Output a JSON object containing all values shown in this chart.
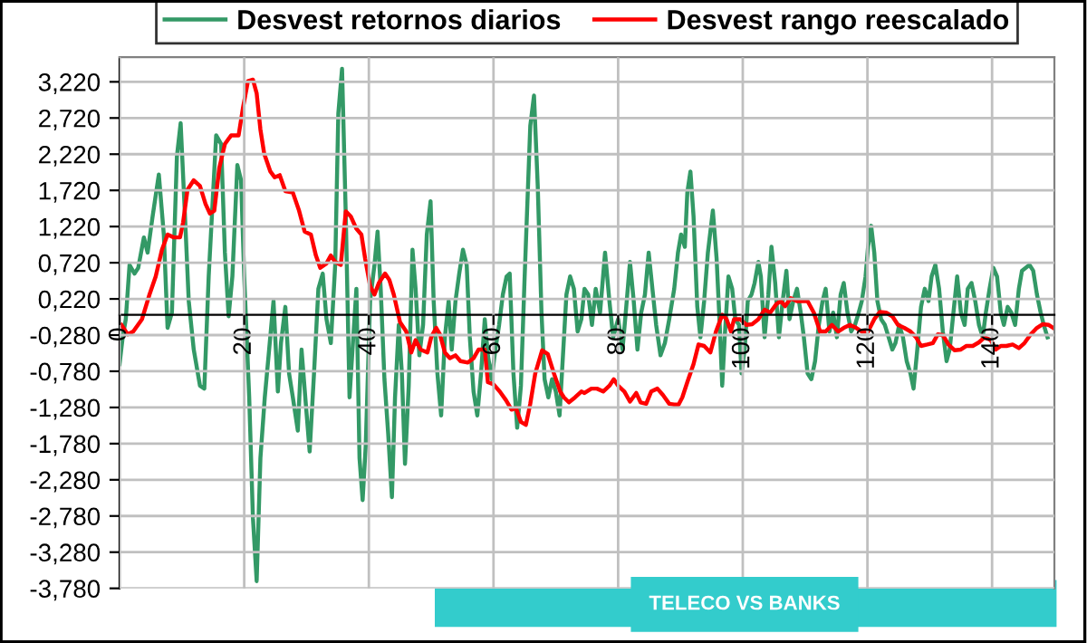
{
  "chart_data": {
    "type": "line",
    "xlim": [
      0,
      150
    ],
    "xticks": [
      0,
      20,
      40,
      60,
      80,
      100,
      120,
      140
    ],
    "ylim": [
      -3.78,
      3.56
    ],
    "yticks": [
      {
        "value": 3.22,
        "label": "3,220"
      },
      {
        "value": 2.72,
        "label": "2,720"
      },
      {
        "value": 2.22,
        "label": "2,220"
      },
      {
        "value": 1.72,
        "label": "1,720"
      },
      {
        "value": 1.22,
        "label": "1,220"
      },
      {
        "value": 0.72,
        "label": "0,720"
      },
      {
        "value": 0.22,
        "label": "0,220"
      },
      {
        "value": -0.28,
        "label": "-0,280"
      },
      {
        "value": -0.78,
        "label": "-0,780"
      },
      {
        "value": -1.28,
        "label": "-1,280"
      },
      {
        "value": -1.78,
        "label": "-1,780"
      },
      {
        "value": -2.28,
        "label": "-2,280"
      },
      {
        "value": -2.78,
        "label": "-2,780"
      },
      {
        "value": -3.28,
        "label": "-3,280"
      },
      {
        "value": -3.78,
        "label": "-3,780"
      }
    ],
    "grid": true,
    "legend": "top",
    "marker": "none",
    "line_style": "solid",
    "annotations": [
      "TELECO VS BANKS"
    ],
    "series": [
      {
        "name": "Desvest retornos diarios",
        "color": "#339966",
        "x": [
          0,
          0.5,
          1.0,
          1.6,
          2.4,
          3.0,
          3.9,
          4.5,
          5.3,
          6.3,
          7.1,
          7.7,
          8.4,
          9.2,
          9.8,
          10.5,
          11.1,
          11.9,
          12.9,
          13.6,
          14.3,
          15.5,
          16.3,
          16.9,
          17.5,
          18.1,
          18.9,
          19.5,
          20.0,
          20.8,
          21.4,
          22.0,
          22.6,
          23.3,
          24.0,
          24.7,
          25.4,
          25.9,
          26.6,
          27.2,
          27.8,
          28.6,
          29.2,
          29.8,
          30.5,
          31.2,
          31.9,
          32.6,
          33.2,
          33.9,
          34.6,
          35.1,
          35.7,
          36.3,
          36.9,
          37.5,
          38.0,
          38.5,
          39.0,
          39.5,
          40.2,
          40.9,
          41.4,
          41.9,
          42.5,
          43.1,
          43.7,
          44.2,
          44.8,
          45.3,
          45.8,
          46.4,
          47.0,
          47.5,
          48.1,
          48.7,
          49.3,
          49.9,
          50.4,
          51.0,
          51.6,
          52.2,
          52.8,
          53.3,
          53.9,
          54.5,
          55.1,
          55.7,
          56.2,
          56.8,
          57.4,
          58.0,
          58.6,
          59.1,
          59.7,
          60.3,
          60.9,
          61.5,
          62.1,
          62.6,
          63.2,
          63.8,
          64.4,
          65.0,
          65.5,
          65.9,
          66.5,
          67.1,
          67.7,
          68.2,
          68.8,
          69.4,
          70.0,
          70.6,
          71.2,
          71.7,
          72.3,
          72.9,
          73.5,
          74.1,
          74.6,
          75.2,
          75.8,
          76.4,
          77.1,
          77.9,
          78.6,
          79.2,
          80.0,
          80.7,
          81.3,
          81.9,
          82.5,
          83.1,
          83.7,
          84.3,
          84.9,
          85.5,
          86.1,
          86.8,
          87.5,
          88.2,
          89.0,
          89.6,
          90.1,
          90.7,
          91.1,
          91.6,
          92.1,
          92.7,
          93.2,
          93.8,
          94.4,
          95.2,
          95.8,
          96.3,
          96.7,
          97.1,
          97.7,
          98.3,
          98.8,
          99.4,
          99.8,
          100.3,
          100.8,
          101.4,
          101.9,
          102.5,
          102.9,
          103.5,
          104.1,
          104.6,
          105.2,
          105.8,
          106.4,
          107.0,
          107.5,
          108.1,
          108.7,
          109.3,
          109.8,
          110.4,
          111.0,
          111.6,
          112.2,
          112.8,
          113.3,
          113.9,
          114.5,
          115.1,
          115.7,
          116.2,
          116.8,
          117.4,
          118.0,
          118.6,
          119.1,
          119.7,
          120.1,
          120.6,
          121.1,
          121.6,
          122.2,
          122.8,
          123.4,
          124.0,
          124.5,
          125.1,
          125.7,
          126.3,
          126.9,
          127.4,
          128.0,
          128.6,
          129.2,
          129.8,
          130.3,
          130.9,
          131.5,
          132.1,
          132.7,
          133.2,
          133.8,
          134.4,
          135.0,
          135.6,
          136.1,
          136.7,
          137.3,
          137.9,
          138.5,
          139.0,
          139.6,
          140.2,
          140.8,
          141.4,
          141.9,
          142.5,
          143.1,
          143.7,
          144.3,
          144.8,
          145.4,
          146.0,
          146.6,
          147.2,
          147.8,
          148.3,
          148.9
        ],
        "values": [
          -0.68,
          -0.31,
          -0.06,
          0.69,
          0.57,
          0.65,
          1.07,
          0.86,
          1.36,
          1.94,
          1.11,
          -0.18,
          0.03,
          2.19,
          2.65,
          1.36,
          0.19,
          -0.48,
          -0.98,
          -1.02,
          0.53,
          2.48,
          2.36,
          0.86,
          -0.02,
          0.53,
          2.07,
          1.86,
          0.53,
          -1.14,
          -2.81,
          -3.68,
          -1.98,
          -1.14,
          -0.48,
          0.19,
          -1.06,
          -0.39,
          0.11,
          -0.81,
          -1.14,
          -1.6,
          -0.48,
          -1.14,
          -1.89,
          -0.81,
          0.36,
          0.57,
          -0.06,
          -0.39,
          0.69,
          2.78,
          3.4,
          1.36,
          -1.14,
          -0.31,
          0.36,
          -1.98,
          -2.56,
          -1.81,
          0.19,
          0.69,
          1.15,
          0.36,
          -0.89,
          -1.64,
          -2.52,
          -1.14,
          -0.14,
          -0.81,
          -2.06,
          -0.98,
          0.9,
          0.36,
          -0.56,
          -0.14,
          1.11,
          1.57,
          0.19,
          -0.81,
          -1.39,
          -0.31,
          0.19,
          -0.48,
          0.19,
          0.57,
          0.9,
          0.69,
          -0.31,
          -1.06,
          -1.39,
          -0.81,
          -0.06,
          -0.56,
          -0.89,
          -0.48,
          -0.14,
          0.28,
          0.53,
          0.57,
          -0.81,
          -1.56,
          -0.98,
          0.53,
          1.69,
          2.61,
          3.03,
          1.78,
          0.03,
          -0.89,
          -1.14,
          -0.89,
          -1.06,
          -1.39,
          -0.48,
          0.28,
          0.53,
          0.36,
          -0.23,
          -0.06,
          0.36,
          0.28,
          -0.14,
          0.36,
          0.03,
          0.86,
          0.19,
          -0.31,
          -0.06,
          -0.48,
          0.11,
          0.73,
          0.19,
          -0.48,
          0.03,
          0.28,
          0.86,
          0.36,
          -0.14,
          -0.56,
          -0.39,
          -0.06,
          0.36,
          0.86,
          1.11,
          0.94,
          1.69,
          1.98,
          1.36,
          0.11,
          -0.31,
          0.19,
          0.86,
          1.44,
          0.78,
          -0.14,
          -0.98,
          -0.31,
          0.53,
          0.36,
          -0.06,
          -0.14,
          -0.81,
          -0.48,
          0.19,
          0.28,
          0.44,
          0.73,
          0.53,
          -0.31,
          0.28,
          0.94,
          0.44,
          -0.31,
          0.19,
          0.61,
          -0.06,
          0.19,
          0.36,
          0.03,
          -0.31,
          -0.81,
          -0.89,
          -0.64,
          -0.14,
          0.19,
          0.36,
          -0.23,
          0.03,
          -0.31,
          0.28,
          0.44,
          0.03,
          -0.23,
          -0.14,
          0.03,
          0.19,
          0.53,
          0.94,
          1.23,
          0.86,
          0.19,
          -0.06,
          -0.14,
          -0.31,
          -0.48,
          -0.39,
          -0.14,
          -0.31,
          -0.64,
          -0.81,
          -1.02,
          -0.48,
          0.11,
          0.36,
          0.19,
          0.53,
          0.69,
          0.36,
          -0.23,
          -0.64,
          -0.48,
          0.03,
          0.53,
          0.03,
          -0.14,
          0.36,
          0.44,
          0.19,
          -0.14,
          -0.31,
          0.03,
          0.36,
          0.65,
          0.53,
          0.03,
          -0.14,
          0.11,
          0.03,
          -0.14,
          0.36,
          0.61,
          0.65,
          0.69,
          0.61,
          0.28,
          0.03,
          -0.14,
          -0.31
        ]
      },
      {
        "name": "Desvest rango reescalado",
        "color": "#ff0000",
        "x": [
          0.3,
          1.3,
          2.2,
          3.6,
          4.8,
          5.8,
          6.8,
          7.7,
          8.7,
          9.7,
          10.2,
          10.9,
          11.9,
          12.9,
          13.8,
          14.5,
          15.2,
          16.0,
          16.9,
          17.9,
          19.1,
          19.8,
          20.6,
          21.4,
          22.0,
          22.6,
          23.2,
          24.2,
          24.9,
          25.7,
          26.6,
          27.8,
          28.8,
          29.7,
          30.7,
          31.5,
          32.2,
          33.2,
          33.9,
          34.6,
          35.5,
          36.3,
          37.1,
          38.0,
          38.8,
          39.4,
          40.2,
          40.9,
          41.6,
          42.6,
          43.3,
          44.0,
          45.0,
          46.0,
          46.8,
          47.5,
          48.3,
          49.4,
          50.0,
          50.8,
          51.4,
          52.2,
          53.0,
          53.9,
          54.7,
          55.9,
          56.8,
          57.6,
          58.6,
          59.1,
          60.0,
          61.0,
          62.0,
          62.9,
          63.6,
          64.4,
          65.2,
          65.9,
          66.7,
          67.8,
          68.7,
          69.7,
          70.7,
          71.3,
          72.1,
          73.1,
          74.1,
          74.6,
          75.7,
          76.6,
          77.6,
          78.6,
          79.3,
          80.0,
          81.0,
          81.9,
          82.9,
          83.6,
          84.5,
          85.3,
          86.3,
          87.2,
          88.2,
          89.0,
          89.7,
          90.3,
          91.1,
          92.1,
          92.9,
          93.8,
          94.8,
          95.7,
          96.7,
          97.4,
          98.1,
          98.6,
          99.6,
          100.6,
          101.5,
          102.5,
          103.5,
          104.4,
          105.4,
          106.1,
          106.8,
          107.7,
          108.7,
          109.7,
          110.4,
          111.4,
          112.4,
          113.3,
          114.3,
          115.3,
          116.2,
          117.2,
          118.2,
          119.1,
          120.1,
          121.1,
          122.0,
          123.0,
          124.0,
          124.9,
          125.9,
          126.9,
          127.8,
          128.6,
          129.6,
          130.5,
          131.3,
          132.1,
          133.0,
          134.0,
          135.0,
          135.9,
          136.9,
          137.9,
          138.8,
          139.8,
          140.6,
          141.4,
          142.3,
          143.3,
          144.3,
          145.2,
          146.2,
          147.2,
          148.1,
          149.1,
          149.8
        ],
        "values": [
          -0.14,
          -0.27,
          -0.23,
          -0.06,
          0.28,
          0.53,
          0.9,
          1.11,
          1.07,
          1.07,
          1.28,
          1.73,
          1.86,
          1.78,
          1.53,
          1.4,
          1.44,
          2.03,
          2.36,
          2.48,
          2.48,
          2.86,
          3.23,
          3.25,
          3.06,
          2.56,
          2.23,
          1.98,
          1.9,
          1.93,
          1.71,
          1.69,
          1.44,
          1.15,
          1.11,
          0.82,
          0.65,
          0.71,
          0.82,
          0.73,
          0.69,
          1.43,
          1.36,
          1.19,
          1.11,
          0.78,
          0.4,
          0.28,
          0.44,
          0.57,
          0.48,
          0.28,
          -0.1,
          -0.23,
          -0.52,
          -0.35,
          -0.48,
          -0.52,
          -0.31,
          -0.18,
          -0.27,
          -0.52,
          -0.6,
          -0.56,
          -0.64,
          -0.66,
          -0.6,
          -0.48,
          -0.48,
          -0.93,
          -0.96,
          -1.06,
          -1.18,
          -1.31,
          -1.29,
          -1.48,
          -1.52,
          -1.23,
          -0.81,
          -0.49,
          -0.54,
          -0.81,
          -1.06,
          -1.14,
          -1.21,
          -1.14,
          -1.06,
          -1.08,
          -1.02,
          -1.02,
          -1.06,
          -0.98,
          -0.89,
          -0.98,
          -1.06,
          -1.2,
          -1.08,
          -1.21,
          -1.23,
          -1.06,
          -1.02,
          -1.11,
          -1.23,
          -1.24,
          -1.24,
          -1.14,
          -0.93,
          -0.68,
          -0.41,
          -0.43,
          -0.52,
          -0.23,
          0.0,
          -0.06,
          -0.23,
          -0.06,
          -0.06,
          -0.14,
          -0.13,
          -0.06,
          0.07,
          0.03,
          0.15,
          0.19,
          0.12,
          0.23,
          0.19,
          0.19,
          0.19,
          0.03,
          -0.23,
          -0.23,
          -0.14,
          -0.23,
          -0.18,
          -0.14,
          -0.18,
          -0.23,
          -0.23,
          -0.06,
          0.04,
          0.03,
          -0.02,
          -0.14,
          -0.18,
          -0.23,
          -0.31,
          -0.43,
          -0.41,
          -0.39,
          -0.27,
          -0.28,
          -0.41,
          -0.49,
          -0.48,
          -0.43,
          -0.43,
          -0.38,
          -0.31,
          -0.35,
          -0.48,
          -0.43,
          -0.43,
          -0.41,
          -0.46,
          -0.39,
          -0.27,
          -0.18,
          -0.13,
          -0.14,
          -0.18
        ]
      }
    ]
  }
}
